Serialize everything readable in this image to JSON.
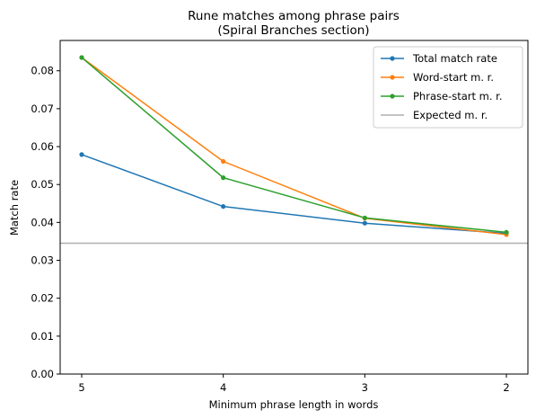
{
  "chart_data": {
    "type": "line",
    "title": "Rune matches among phrase pairs",
    "subtitle": "(Spiral Branches section)",
    "xlabel": "Minimum phrase length in words",
    "ylabel": "Match rate",
    "x": [
      "5",
      "4",
      "3",
      "2"
    ],
    "ylim": [
      0,
      0.088
    ],
    "yticks": [
      "0.00",
      "0.01",
      "0.02",
      "0.03",
      "0.04",
      "0.05",
      "0.06",
      "0.07",
      "0.08"
    ],
    "grid": false,
    "legend_position": "top-right",
    "series": [
      {
        "name": "Total match rate",
        "color": "#1f77b4",
        "values": [
          0.0579,
          0.0442,
          0.0398,
          0.0371
        ]
      },
      {
        "name": "Word-start m. r.",
        "color": "#ff7f0e",
        "values": [
          0.0835,
          0.0561,
          0.0411,
          0.0368
        ]
      },
      {
        "name": "Phrase-start m. r.",
        "color": "#2ca02c",
        "values": [
          0.0835,
          0.0518,
          0.0412,
          0.0374
        ]
      }
    ],
    "reference_line": {
      "name": "Expected m. r.",
      "color": "#b0b0b0",
      "value": 0.0345
    }
  }
}
